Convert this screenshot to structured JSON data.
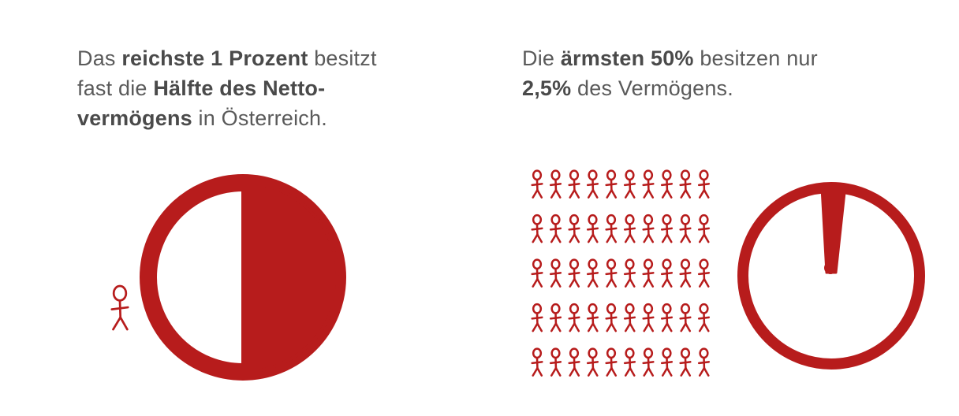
{
  "left_panel": {
    "line1": [
      "Das ",
      "reichste 1 Prozent",
      " besitzt"
    ],
    "line2": [
      "fast die ",
      "Hälfte des Netto-"
    ],
    "line3": [
      "vermögens",
      " in Österreich."
    ]
  },
  "right_panel": {
    "line1": [
      "Die ",
      "ärmsten 50%",
      " besitzen nur"
    ],
    "line2": [
      "2,5%",
      " des Vermögens."
    ]
  },
  "colors": {
    "accent": "#b71c1c",
    "text": "#5a5a5a"
  },
  "chart_data": [
    {
      "type": "pie",
      "title": "",
      "slices": [
        {
          "label": "",
          "value": 50
        }
      ],
      "icon_people": 1
    },
    {
      "type": "pie",
      "title": "",
      "slices": [
        {
          "label": "",
          "value": 2.5
        }
      ],
      "icon_people": 50
    }
  ]
}
